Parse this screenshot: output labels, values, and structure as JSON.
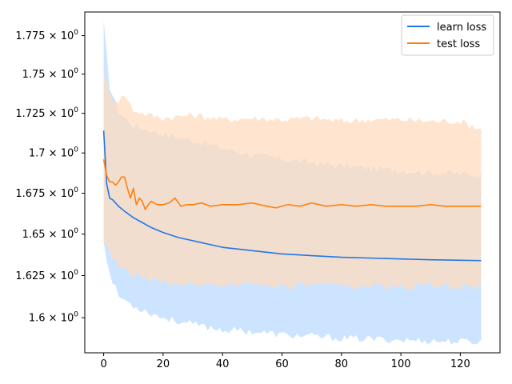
{
  "chart_data": {
    "type": "line",
    "title": "",
    "xlabel": "",
    "ylabel": "",
    "y_scale": "log",
    "xlim": [
      -6.35,
      133.35
    ],
    "ylim": [
      1.5795,
      1.7905
    ],
    "x_ticks": [
      0,
      20,
      40,
      60,
      80,
      100,
      120
    ],
    "x_tick_labels": [
      "0",
      "20",
      "40",
      "60",
      "80",
      "100",
      "120"
    ],
    "y_ticks": [
      1.6,
      1.625,
      1.65,
      1.675,
      1.7,
      1.725,
      1.75,
      1.775
    ],
    "y_tick_labels": [
      {
        "mantissa": "1.6",
        "base": "10",
        "exp": "0"
      },
      {
        "mantissa": "1.625",
        "base": "10",
        "exp": "0"
      },
      {
        "mantissa": "1.65",
        "base": "10",
        "exp": "0"
      },
      {
        "mantissa": "1.675",
        "base": "10",
        "exp": "0"
      },
      {
        "mantissa": "1.7",
        "base": "10",
        "exp": "0"
      },
      {
        "mantissa": "1.725",
        "base": "10",
        "exp": "0"
      },
      {
        "mantissa": "1.75",
        "base": "10",
        "exp": "0"
      },
      {
        "mantissa": "1.775",
        "base": "10",
        "exp": "0"
      }
    ],
    "grid": false,
    "legend_position": "top-right",
    "series": [
      {
        "name": "learn loss",
        "color": "#1f77e6",
        "band_color": "#cce4ff",
        "points": [
          [
            0,
            1.714
          ],
          [
            1,
            1.681
          ],
          [
            2,
            1.672
          ],
          [
            3,
            1.671
          ],
          [
            5,
            1.667
          ],
          [
            7,
            1.664
          ],
          [
            10,
            1.66
          ],
          [
            13,
            1.657
          ],
          [
            16,
            1.654
          ],
          [
            20,
            1.651
          ],
          [
            25,
            1.648
          ],
          [
            30,
            1.646
          ],
          [
            35,
            1.644
          ],
          [
            40,
            1.642
          ],
          [
            50,
            1.64
          ],
          [
            60,
            1.638
          ],
          [
            70,
            1.637
          ],
          [
            80,
            1.636
          ],
          [
            90,
            1.6355
          ],
          [
            100,
            1.635
          ],
          [
            110,
            1.6345
          ],
          [
            120,
            1.6342
          ],
          [
            127,
            1.634
          ]
        ],
        "upper": [
          [
            0,
            1.783
          ],
          [
            2,
            1.742
          ],
          [
            5,
            1.726
          ],
          [
            10,
            1.717
          ],
          [
            20,
            1.712
          ],
          [
            30,
            1.708
          ],
          [
            40,
            1.703
          ],
          [
            50,
            1.699
          ],
          [
            60,
            1.696
          ],
          [
            80,
            1.692
          ],
          [
            100,
            1.689
          ],
          [
            120,
            1.687
          ],
          [
            127,
            1.686
          ]
        ],
        "lower": [
          [
            0,
            1.646
          ],
          [
            2,
            1.626
          ],
          [
            5,
            1.613
          ],
          [
            10,
            1.607
          ],
          [
            20,
            1.6
          ],
          [
            30,
            1.596
          ],
          [
            40,
            1.593
          ],
          [
            50,
            1.592
          ],
          [
            60,
            1.59
          ],
          [
            80,
            1.588
          ],
          [
            100,
            1.587
          ],
          [
            120,
            1.586
          ],
          [
            127,
            1.586
          ]
        ]
      },
      {
        "name": "test loss",
        "color": "#ff7f0e",
        "band_color": "#ffdcbf",
        "points": [
          [
            0,
            1.696
          ],
          [
            1,
            1.686
          ],
          [
            2,
            1.682
          ],
          [
            3,
            1.682
          ],
          [
            4,
            1.68
          ],
          [
            5,
            1.682
          ],
          [
            6,
            1.685
          ],
          [
            7,
            1.685
          ],
          [
            8,
            1.678
          ],
          [
            9,
            1.672
          ],
          [
            10,
            1.678
          ],
          [
            11,
            1.668
          ],
          [
            12,
            1.672
          ],
          [
            13,
            1.67
          ],
          [
            14,
            1.665
          ],
          [
            15,
            1.668
          ],
          [
            16,
            1.67
          ],
          [
            18,
            1.668
          ],
          [
            20,
            1.668
          ],
          [
            22,
            1.669
          ],
          [
            24,
            1.672
          ],
          [
            26,
            1.667
          ],
          [
            28,
            1.668
          ],
          [
            30,
            1.668
          ],
          [
            33,
            1.669
          ],
          [
            36,
            1.667
          ],
          [
            40,
            1.668
          ],
          [
            45,
            1.668
          ],
          [
            50,
            1.669
          ],
          [
            55,
            1.667
          ],
          [
            58,
            1.666
          ],
          [
            62,
            1.668
          ],
          [
            66,
            1.667
          ],
          [
            70,
            1.669
          ],
          [
            75,
            1.667
          ],
          [
            80,
            1.668
          ],
          [
            85,
            1.667
          ],
          [
            90,
            1.668
          ],
          [
            95,
            1.667
          ],
          [
            100,
            1.667
          ],
          [
            105,
            1.667
          ],
          [
            110,
            1.668
          ],
          [
            115,
            1.667
          ],
          [
            120,
            1.667
          ],
          [
            124,
            1.667
          ],
          [
            127,
            1.667
          ]
        ],
        "upper": [
          [
            0,
            1.752
          ],
          [
            2,
            1.736
          ],
          [
            5,
            1.733
          ],
          [
            7,
            1.737
          ],
          [
            10,
            1.727
          ],
          [
            15,
            1.724
          ],
          [
            20,
            1.722
          ],
          [
            30,
            1.724
          ],
          [
            40,
            1.721
          ],
          [
            50,
            1.722
          ],
          [
            60,
            1.721
          ],
          [
            70,
            1.722
          ],
          [
            80,
            1.72
          ],
          [
            90,
            1.721
          ],
          [
            100,
            1.721
          ],
          [
            110,
            1.72
          ],
          [
            120,
            1.72
          ],
          [
            127,
            1.715
          ]
        ],
        "lower": [
          [
            0,
            1.646
          ],
          [
            2,
            1.638
          ],
          [
            5,
            1.63
          ],
          [
            10,
            1.625
          ],
          [
            20,
            1.621
          ],
          [
            30,
            1.62
          ],
          [
            40,
            1.619
          ],
          [
            50,
            1.62
          ],
          [
            60,
            1.619
          ],
          [
            70,
            1.619
          ],
          [
            80,
            1.619
          ],
          [
            90,
            1.619
          ],
          [
            100,
            1.618
          ],
          [
            110,
            1.619
          ],
          [
            120,
            1.618
          ],
          [
            127,
            1.618
          ]
        ]
      }
    ]
  }
}
